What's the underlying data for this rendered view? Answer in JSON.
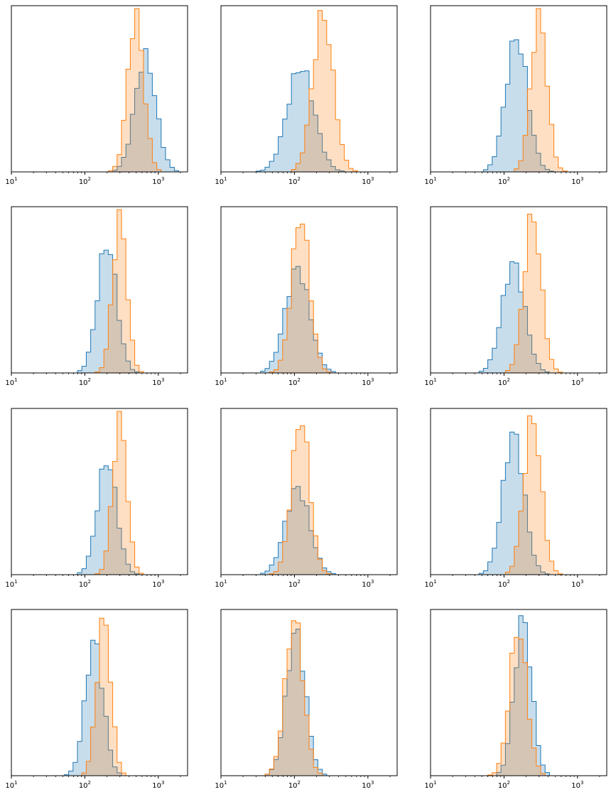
{
  "chart_data": [
    {
      "type": "histogram",
      "panel": "row1-col1",
      "xscale": "log",
      "xlim": [
        10,
        2500
      ],
      "yaxis_visible": false,
      "xticks": [
        "10^1",
        "10^2",
        "10^3"
      ],
      "series": [
        {
          "color": "#1f77b4",
          "mode": 6.5,
          "spread": 0.33,
          "peak": 0.7
        },
        {
          "color": "#ff7f0e",
          "mode": 6.2,
          "spread": 0.25,
          "peak": 0.96
        }
      ]
    },
    {
      "type": "histogram",
      "panel": "row1-col2",
      "xscale": "log",
      "xlim": [
        10,
        2500
      ],
      "yaxis_visible": false,
      "xticks": [
        "10^1",
        "10^2",
        "10^3"
      ],
      "series": [
        {
          "color": "#1f77b4",
          "mode": 4.8,
          "spread": 0.42,
          "peak": 0.64
        },
        {
          "color": "#ff7f0e",
          "mode": 5.5,
          "spread": 0.32,
          "peak": 0.96
        }
      ]
    },
    {
      "type": "histogram",
      "panel": "row1-col3",
      "xscale": "log",
      "xlim": [
        10,
        2500
      ],
      "yaxis_visible": false,
      "xticks": [
        "10^1",
        "10^2",
        "10^3"
      ],
      "series": [
        {
          "color": "#1f77b4",
          "mode": 5.0,
          "spread": 0.34,
          "peak": 0.82
        },
        {
          "color": "#ff7f0e",
          "mode": 5.7,
          "spread": 0.25,
          "peak": 0.96
        }
      ]
    },
    {
      "type": "histogram",
      "panel": "row2-col1",
      "xscale": "log",
      "xlim": [
        10,
        2500
      ],
      "yaxis_visible": false,
      "xticks": [
        "10^1",
        "10^2",
        "10^3"
      ],
      "series": [
        {
          "color": "#1f77b4",
          "mode": 5.3,
          "spread": 0.3,
          "peak": 0.79
        },
        {
          "color": "#ff7f0e",
          "mode": 5.7,
          "spread": 0.22,
          "peak": 0.96
        }
      ]
    },
    {
      "type": "histogram",
      "panel": "row2-col2",
      "xscale": "log",
      "xlim": [
        10,
        2500
      ],
      "yaxis_visible": false,
      "xticks": [
        "10^1",
        "10^2",
        "10^3"
      ],
      "series": [
        {
          "color": "#1f77b4",
          "mode": 4.7,
          "spread": 0.38,
          "peak": 0.64
        },
        {
          "color": "#ff7f0e",
          "mode": 4.8,
          "spread": 0.28,
          "peak": 0.96
        }
      ]
    },
    {
      "type": "histogram",
      "panel": "row2-col3",
      "xscale": "log",
      "xlim": [
        10,
        2500
      ],
      "yaxis_visible": false,
      "xticks": [
        "10^1",
        "10^2",
        "10^3"
      ],
      "series": [
        {
          "color": "#1f77b4",
          "mode": 4.9,
          "spread": 0.35,
          "peak": 0.67
        },
        {
          "color": "#ff7f0e",
          "mode": 5.5,
          "spread": 0.27,
          "peak": 0.96
        }
      ]
    },
    {
      "type": "histogram",
      "panel": "row3-col1",
      "xscale": "log",
      "xlim": [
        10,
        2500
      ],
      "yaxis_visible": false,
      "xticks": [
        "10^1",
        "10^2",
        "10^3"
      ],
      "series": [
        {
          "color": "#1f77b4",
          "mode": 5.3,
          "spread": 0.3,
          "peak": 0.7
        },
        {
          "color": "#ff7f0e",
          "mode": 5.7,
          "spread": 0.22,
          "peak": 0.96
        }
      ]
    },
    {
      "type": "histogram",
      "panel": "row3-col2",
      "xscale": "log",
      "xlim": [
        10,
        2500
      ],
      "yaxis_visible": false,
      "xticks": [
        "10^1",
        "10^2",
        "10^3"
      ],
      "series": [
        {
          "color": "#1f77b4",
          "mode": 4.7,
          "spread": 0.38,
          "peak": 0.53
        },
        {
          "color": "#ff7f0e",
          "mode": 4.8,
          "spread": 0.28,
          "peak": 0.96
        }
      ]
    },
    {
      "type": "histogram",
      "panel": "row3-col3",
      "xscale": "log",
      "xlim": [
        10,
        2500
      ],
      "yaxis_visible": false,
      "xticks": [
        "10^1",
        "10^2",
        "10^3"
      ],
      "series": [
        {
          "color": "#1f77b4",
          "mode": 4.9,
          "spread": 0.33,
          "peak": 0.86
        },
        {
          "color": "#ff7f0e",
          "mode": 5.5,
          "spread": 0.27,
          "peak": 0.96
        }
      ]
    },
    {
      "type": "histogram",
      "panel": "row4-col1",
      "xscale": "log",
      "xlim": [
        10,
        2500
      ],
      "yaxis_visible": false,
      "xticks": [
        "10^1",
        "10^2",
        "10^3"
      ],
      "series": [
        {
          "color": "#1f77b4",
          "mode": 4.9,
          "spread": 0.28,
          "peak": 0.82
        },
        {
          "color": "#ff7f0e",
          "mode": 5.2,
          "spread": 0.22,
          "peak": 0.96
        }
      ]
    },
    {
      "type": "histogram",
      "panel": "row4-col2",
      "xscale": "log",
      "xlim": [
        10,
        2500
      ],
      "yaxis_visible": false,
      "xticks": [
        "10^1",
        "10^2",
        "10^3"
      ],
      "series": [
        {
          "color": "#1f77b4",
          "mode": 4.65,
          "spread": 0.3,
          "peak": 0.88
        },
        {
          "color": "#ff7f0e",
          "mode": 4.6,
          "spread": 0.28,
          "peak": 0.96
        }
      ]
    },
    {
      "type": "histogram",
      "panel": "row4-col3",
      "xscale": "log",
      "xlim": [
        10,
        2500
      ],
      "yaxis_visible": false,
      "xticks": [
        "10^1",
        "10^2",
        "10^3"
      ],
      "series": [
        {
          "color": "#1f77b4",
          "mode": 5.2,
          "spread": 0.27,
          "peak": 0.96
        },
        {
          "color": "#ff7f0e",
          "mode": 5.05,
          "spread": 0.27,
          "peak": 0.9
        }
      ]
    }
  ]
}
